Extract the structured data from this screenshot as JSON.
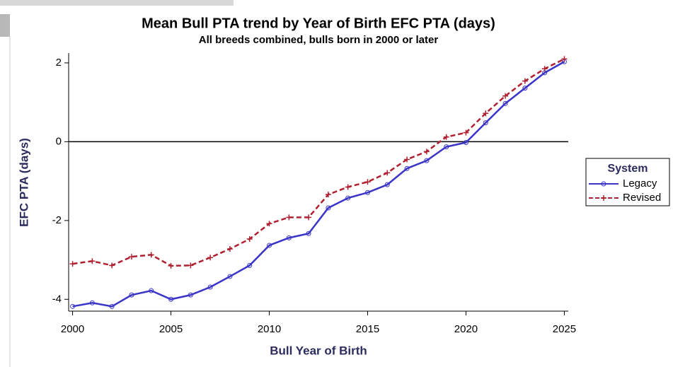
{
  "chart_data": {
    "type": "line",
    "title": "Mean Bull PTA trend by Year of Birth EFC PTA (days)",
    "subtitle": "All breeds combined, bulls born in 2000 or later",
    "xlabel": "Bull Year of Birth",
    "ylabel": "EFC PTA (days)",
    "x": [
      2000,
      2001,
      2002,
      2003,
      2004,
      2005,
      2006,
      2007,
      2008,
      2009,
      2010,
      2011,
      2012,
      2013,
      2014,
      2015,
      2016,
      2017,
      2018,
      2019,
      2020,
      2021,
      2022,
      2023,
      2024,
      2025
    ],
    "series": [
      {
        "name": "Legacy",
        "color": "#3a34c8",
        "marker": "circle",
        "values": [
          -4.18,
          -4.09,
          -4.18,
          -3.89,
          -3.78,
          -4.0,
          -3.89,
          -3.69,
          -3.42,
          -3.14,
          -2.63,
          -2.44,
          -2.33,
          -1.68,
          -1.43,
          -1.29,
          -1.09,
          -0.68,
          -0.48,
          -0.13,
          -0.02,
          0.48,
          0.97,
          1.36,
          1.75,
          2.03
        ]
      },
      {
        "name": "Revised",
        "color": "#b02030",
        "marker": "plus",
        "dash": true,
        "values": [
          -3.1,
          -3.03,
          -3.14,
          -2.92,
          -2.87,
          -3.15,
          -3.14,
          -2.94,
          -2.72,
          -2.47,
          -2.08,
          -1.92,
          -1.92,
          -1.34,
          -1.15,
          -1.02,
          -0.79,
          -0.45,
          -0.25,
          0.12,
          0.23,
          0.72,
          1.16,
          1.54,
          1.85,
          2.1
        ]
      }
    ],
    "reference_line": 0,
    "legend_title": "System",
    "legend": "right",
    "xlim": [
      1999.8,
      2025.2
    ],
    "xticks": [
      2000,
      2005,
      2010,
      2015,
      2020,
      2025
    ],
    "ylim": [
      -4.3,
      2.25
    ],
    "yticks": [
      -4,
      -2,
      0,
      2
    ]
  }
}
